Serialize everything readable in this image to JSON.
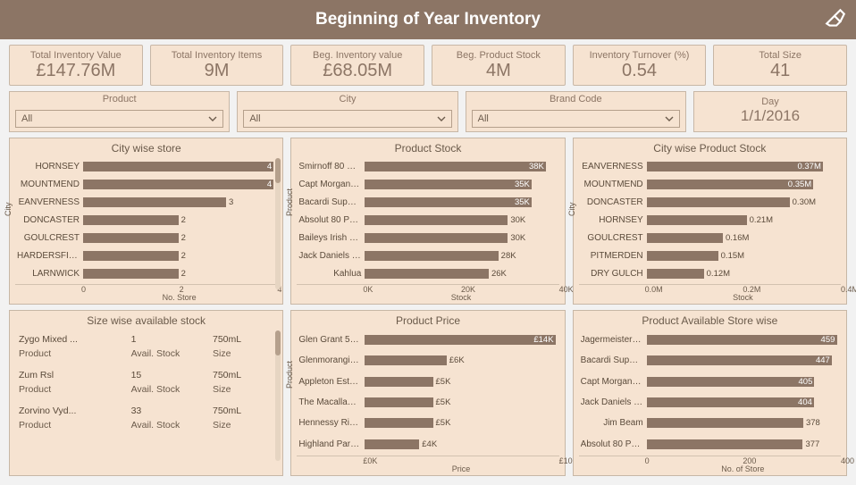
{
  "colors": {
    "accent": "#8c7565",
    "panel": "#f6e3d1",
    "border": "#c7b7a6",
    "text": "#6a5a4a"
  },
  "header": {
    "title": "Beginning of Year Inventory"
  },
  "kpis": [
    {
      "label": "Total Inventory Value",
      "value": "£147.76M"
    },
    {
      "label": "Total Inventory Items",
      "value": "9M"
    },
    {
      "label": "Beg. Inventory value",
      "value": "£68.05M"
    },
    {
      "label": "Beg. Product Stock",
      "value": "4M"
    },
    {
      "label": "Inventory Turnover (%)",
      "value": "0.54"
    },
    {
      "label": "Total Size",
      "value": "41"
    }
  ],
  "filters": {
    "product": {
      "title": "Product",
      "value": "All"
    },
    "city": {
      "title": "City",
      "value": "All"
    },
    "brand": {
      "title": "Brand Code",
      "value": "All"
    },
    "day": {
      "title": "Day",
      "value": "1/1/2016"
    }
  },
  "cityStore": {
    "title": "City wise store",
    "yLabel": "City",
    "xLabel": "No. Store",
    "xMax": 4,
    "ticks": [
      "0",
      "2",
      "4"
    ],
    "bars": [
      {
        "cat": "HORNSEY",
        "val": 4,
        "label": "4"
      },
      {
        "cat": "MOUNTMEND",
        "val": 4,
        "label": "4"
      },
      {
        "cat": "EANVERNESS",
        "val": 3,
        "label": "3"
      },
      {
        "cat": "DONCASTER",
        "val": 2,
        "label": "2"
      },
      {
        "cat": "GOULCREST",
        "val": 2,
        "label": "2"
      },
      {
        "cat": "HARDERSFIELD",
        "val": 2,
        "label": "2"
      },
      {
        "cat": "LARNWICK",
        "val": 2,
        "label": "2"
      }
    ]
  },
  "productStock": {
    "title": "Product Stock",
    "yLabel": "Product",
    "xLabel": "Stock",
    "xMax": 40,
    "ticks": [
      "0K",
      "20K",
      "40K"
    ],
    "bars": [
      {
        "cat": "Smirnoff 80 Pr...",
        "val": 38,
        "label": "38K"
      },
      {
        "cat": "Capt Morgan S...",
        "val": 35,
        "label": "35K"
      },
      {
        "cat": "Bacardi Superi...",
        "val": 35,
        "label": "35K"
      },
      {
        "cat": "Absolut 80 Proof",
        "val": 30,
        "label": "30K"
      },
      {
        "cat": "Baileys Irish Cr...",
        "val": 30,
        "label": "30K"
      },
      {
        "cat": "Jack Daniels N...",
        "val": 28,
        "label": "28K"
      },
      {
        "cat": "Kahlua",
        "val": 26,
        "label": "26K"
      }
    ]
  },
  "cityProductStock": {
    "title": "City wise Product Stock",
    "yLabel": "City",
    "xLabel": "Stock",
    "xMax": 0.4,
    "ticks": [
      "0.0M",
      "0.2M",
      "0.4M"
    ],
    "bars": [
      {
        "cat": "EANVERNESS",
        "val": 0.37,
        "label": "0.37M"
      },
      {
        "cat": "MOUNTMEND",
        "val": 0.35,
        "label": "0.35M"
      },
      {
        "cat": "DONCASTER",
        "val": 0.3,
        "label": "0.30M"
      },
      {
        "cat": "HORNSEY",
        "val": 0.21,
        "label": "0.21M"
      },
      {
        "cat": "GOULCREST",
        "val": 0.16,
        "label": "0.16M"
      },
      {
        "cat": "PITMERDEN",
        "val": 0.15,
        "label": "0.15M"
      },
      {
        "cat": "DRY GULCH",
        "val": 0.12,
        "label": "0.12M"
      }
    ]
  },
  "sizeStock": {
    "title": "Size wise available stock",
    "headers": {
      "c1": "Product",
      "c2": "Avail. Stock",
      "c3": "Size"
    },
    "rows": [
      {
        "c1": "Zygo Mixed ...",
        "c2": "1",
        "c3": "750mL"
      },
      {
        "c1": "Zum Rsl",
        "c2": "15",
        "c3": "750mL"
      },
      {
        "c1": "Zorvino Vyd...",
        "c2": "33",
        "c3": "750mL"
      }
    ]
  },
  "productPrice": {
    "title": "Product Price",
    "yLabel": "Product",
    "xLabel": "Price",
    "xMax": 14,
    "ticks": [
      "£0K",
      "£10K"
    ],
    "bars": [
      {
        "cat": "Glen Grant 50 ...",
        "val": 14,
        "label": "£14K"
      },
      {
        "cat": "Glenmorangie ...",
        "val": 6,
        "label": "£6K"
      },
      {
        "cat": "Appleton Estat...",
        "val": 5,
        "label": "£5K"
      },
      {
        "cat": "The Macallan ...",
        "val": 5,
        "label": "£5K"
      },
      {
        "cat": "Hennessy Rich...",
        "val": 5,
        "label": "£5K"
      },
      {
        "cat": "Highland Park ...",
        "val": 4,
        "label": "£4K"
      }
    ]
  },
  "availableStore": {
    "title": "Product Available Store wise",
    "yLabel": "",
    "xLabel": "No. of Store",
    "xMax": 460,
    "ticks": [
      "0",
      "200",
      "400"
    ],
    "bars": [
      {
        "cat": "Jagermeister Li...",
        "val": 459,
        "label": "459"
      },
      {
        "cat": "Bacardi Superi...",
        "val": 447,
        "label": "447"
      },
      {
        "cat": "Capt Morgan S...",
        "val": 405,
        "label": "405"
      },
      {
        "cat": "Jack Daniels N...",
        "val": 404,
        "label": "404"
      },
      {
        "cat": "Jim Beam",
        "val": 378,
        "label": "378"
      },
      {
        "cat": "Absolut 80 Proof",
        "val": 377,
        "label": "377"
      }
    ]
  }
}
